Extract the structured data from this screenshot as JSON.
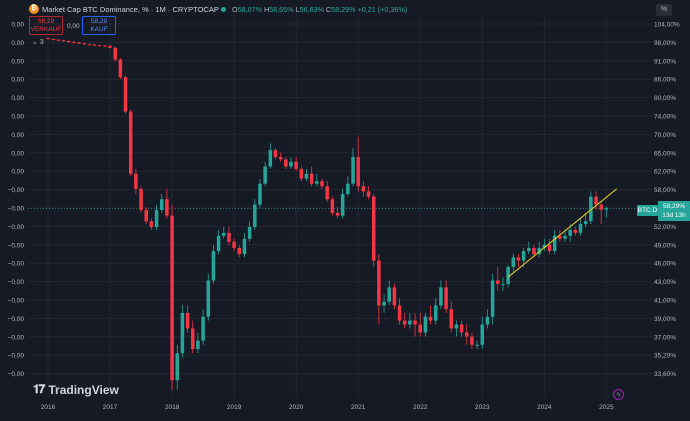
{
  "header": {
    "title": "Market Cap BTC Dominance, % · 1M · CRYPTOCAP",
    "symbol_icon": "bitcoin-icon",
    "ohlc": [
      {
        "key": "O",
        "value": "58,07%"
      },
      {
        "key": "H",
        "value": "58,65%"
      },
      {
        "key": "L",
        "value": "56,63%"
      },
      {
        "key": "C",
        "value": "58,29%"
      },
      {
        "key": "",
        "value": "+0,21 (+0,36%)"
      }
    ]
  },
  "trade": {
    "sell_price": "58,29",
    "sell_label": "VERKAUF",
    "spread": "0,00",
    "buy_price": "58,29",
    "buy_label": "KAUF",
    "collapse": "⌄ 3"
  },
  "scale_button": "%",
  "price_label": {
    "symbol": "BTC.D",
    "value": "58,29%",
    "countdown": "13d 13h"
  },
  "left_axis": [
    "0,00",
    "0,00",
    "0,00",
    "0,00",
    "0,00",
    "0,00",
    "0,00",
    "0,00",
    "0,00",
    "−0,00",
    "−0,00",
    "−0,00",
    "−0,00",
    "−0,00",
    "−0,00",
    "−0,00",
    "−0,00",
    "−0,00",
    "−0,00",
    "−0,00"
  ],
  "right_axis": [
    "104,00%",
    "98,00%",
    "91,00%",
    "86,00%",
    "80,00%",
    "74,00%",
    "70,00%",
    "65,00%",
    "62,00%",
    "58,00%",
    "55,00%",
    "52,00%",
    "49,00%",
    "46,00%",
    "43,00%",
    "41,00%",
    "39,00%",
    "37,00%",
    "35,20%",
    "33,60%"
  ],
  "x_axis": [
    "2016",
    "2017",
    "2018",
    "2019",
    "2020",
    "2021",
    "2022",
    "2023",
    "2024",
    "2025"
  ],
  "branding": {
    "logo_text": "TradingView"
  },
  "colors": {
    "up": "#26a69a",
    "down": "#f23645",
    "trendline": "#e4d41c",
    "bg": "#161a25",
    "grid": "#232733"
  },
  "chart_data": {
    "type": "candlestick",
    "title": "Market Cap BTC Dominance, % · 1M · CRYPTOCAP",
    "x": [
      "2016-01",
      "2016-02",
      "2016-03",
      "2016-04",
      "2016-05",
      "2016-06",
      "2016-07",
      "2016-08",
      "2016-09",
      "2016-10",
      "2016-11",
      "2016-12",
      "2017-01",
      "2017-02",
      "2017-03",
      "2017-04",
      "2017-05",
      "2017-06",
      "2017-07",
      "2017-08",
      "2017-09",
      "2017-10",
      "2017-11",
      "2017-12",
      "2018-01",
      "2018-02",
      "2018-03",
      "2018-04",
      "2018-05",
      "2018-06",
      "2018-07",
      "2018-08",
      "2018-09",
      "2018-10",
      "2018-11",
      "2018-12",
      "2019-01",
      "2019-02",
      "2019-03",
      "2019-04",
      "2019-05",
      "2019-06",
      "2019-07",
      "2019-08",
      "2019-09",
      "2019-10",
      "2019-11",
      "2019-12",
      "2020-01",
      "2020-02",
      "2020-03",
      "2020-04",
      "2020-05",
      "2020-06",
      "2020-07",
      "2020-08",
      "2020-09",
      "2020-10",
      "2020-11",
      "2020-12",
      "2021-01",
      "2021-02",
      "2021-03",
      "2021-04",
      "2021-05",
      "2021-06",
      "2021-07",
      "2021-08",
      "2021-09",
      "2021-10",
      "2021-11",
      "2021-12",
      "2022-01",
      "2022-02",
      "2022-03",
      "2022-04",
      "2022-05",
      "2022-06",
      "2022-07",
      "2022-08",
      "2022-09",
      "2022-10",
      "2022-11",
      "2022-12",
      "2023-01",
      "2023-02",
      "2023-03",
      "2023-04",
      "2023-05",
      "2023-06",
      "2023-07",
      "2023-08",
      "2023-09",
      "2023-10",
      "2023-11",
      "2023-12",
      "2024-01",
      "2024-02",
      "2024-03",
      "2024-04",
      "2024-05",
      "2024-06",
      "2024-07",
      "2024-08",
      "2024-09",
      "2024-10",
      "2024-11",
      "2024-12",
      "2025-01"
    ],
    "open": [
      99.5,
      99.2,
      99.0,
      98.8,
      98.6,
      98.3,
      98.1,
      97.9,
      97.6,
      97.5,
      97.3,
      97.2,
      97.1,
      96.5,
      93.0,
      88.0,
      79.0,
      65.0,
      62.0,
      58.0,
      56.0,
      55.0,
      58.0,
      60.0,
      57.0,
      34.0,
      37.0,
      42.0,
      40.0,
      37.5,
      38.5,
      41.5,
      46.5,
      51.0,
      53.5,
      54.0,
      52.5,
      51.5,
      50.5,
      53.0,
      55.0,
      59.0,
      63.0,
      66.5,
      70.0,
      68.5,
      68.0,
      66.5,
      67.5,
      66.0,
      64.0,
      65.0,
      63.0,
      63.5,
      62.5,
      60.0,
      57.5,
      57.0,
      61.0,
      63.0,
      68.5,
      62.5,
      61.5,
      60.5,
      49.5,
      43.0,
      43.5,
      45.5,
      43.0,
      41.0,
      40.5,
      41.0,
      40.5,
      39.5,
      41.5,
      41.0,
      43.0,
      45.5,
      42.5,
      40.0,
      40.5,
      39.5,
      39.0,
      38.0,
      38.0,
      40.5,
      41.5,
      46.5,
      46.0,
      46.0,
      48.5,
      50.0,
      49.5,
      51.0,
      51.5,
      50.5,
      51.5,
      52.0,
      51.0,
      53.5,
      53.0,
      53.5,
      54.5,
      54.0,
      55.5,
      56.0,
      60.5,
      59.0,
      58.07
    ],
    "close": [
      99.2,
      99.0,
      98.8,
      98.6,
      98.3,
      98.1,
      97.9,
      97.6,
      97.5,
      97.3,
      97.2,
      97.1,
      96.5,
      93.0,
      88.0,
      79.0,
      65.0,
      62.0,
      58.0,
      56.0,
      55.0,
      58.0,
      60.0,
      57.0,
      34.0,
      37.0,
      42.0,
      40.0,
      37.5,
      38.5,
      41.5,
      46.5,
      51.0,
      53.5,
      54.0,
      52.5,
      51.5,
      50.5,
      53.0,
      55.0,
      59.0,
      63.0,
      66.5,
      70.0,
      68.5,
      68.0,
      66.5,
      67.5,
      66.0,
      64.0,
      65.0,
      63.0,
      63.5,
      62.5,
      60.0,
      57.5,
      57.0,
      61.0,
      63.0,
      68.5,
      62.5,
      61.5,
      60.5,
      49.5,
      43.0,
      43.5,
      45.5,
      43.0,
      41.0,
      40.5,
      41.0,
      40.5,
      39.5,
      41.5,
      41.0,
      43.0,
      45.5,
      42.5,
      40.0,
      40.5,
      39.5,
      39.0,
      38.0,
      38.0,
      40.5,
      41.5,
      46.5,
      46.0,
      46.0,
      48.5,
      50.0,
      49.5,
      51.0,
      51.5,
      50.5,
      51.5,
      52.0,
      51.0,
      53.5,
      53.0,
      53.5,
      54.5,
      54.0,
      55.5,
      56.0,
      60.5,
      59.0,
      58.07,
      58.29
    ],
    "high": [
      99.7,
      99.4,
      99.2,
      99.0,
      98.8,
      98.5,
      98.3,
      98.1,
      97.8,
      97.7,
      97.5,
      97.4,
      97.3,
      96.9,
      93.5,
      88.5,
      79.5,
      66.0,
      62.5,
      58.5,
      56.5,
      59.0,
      61.0,
      62.0,
      59.0,
      38.0,
      43.0,
      43.0,
      41.0,
      39.5,
      42.5,
      47.5,
      52.0,
      54.5,
      55.0,
      55.0,
      53.0,
      52.0,
      54.0,
      56.0,
      60.0,
      64.0,
      67.5,
      71.5,
      70.5,
      69.5,
      68.5,
      68.5,
      68.5,
      66.5,
      66.0,
      66.5,
      65.0,
      64.0,
      63.5,
      60.5,
      58.5,
      62.0,
      64.5,
      70.5,
      73.0,
      63.5,
      62.5,
      61.0,
      50.5,
      44.5,
      46.5,
      46.0,
      44.0,
      42.0,
      42.0,
      42.0,
      42.0,
      42.0,
      43.0,
      44.0,
      46.5,
      46.5,
      43.5,
      41.0,
      41.0,
      40.5,
      39.5,
      38.5,
      41.5,
      42.5,
      47.5,
      48.5,
      47.0,
      48.8,
      50.6,
      50.5,
      51.5,
      52.5,
      52.0,
      52.5,
      53.0,
      53.0,
      54.5,
      54.5,
      54.5,
      55.5,
      55.0,
      56.5,
      57.5,
      61.5,
      61.5,
      59.5,
      58.65
    ],
    "low": [
      99.0,
      98.8,
      98.6,
      98.4,
      98.1,
      97.9,
      97.7,
      97.4,
      97.3,
      97.1,
      97.0,
      96.9,
      96.3,
      92.5,
      87.5,
      78.5,
      64.5,
      61.0,
      57.5,
      55.5,
      54.5,
      54.5,
      57.5,
      56.5,
      33.0,
      33.0,
      36.5,
      39.5,
      37.0,
      37.0,
      38.0,
      41.0,
      46.0,
      50.5,
      53.0,
      52.0,
      51.0,
      50.0,
      50.0,
      52.5,
      54.5,
      58.5,
      62.5,
      66.0,
      68.0,
      67.5,
      66.0,
      66.0,
      65.5,
      63.5,
      63.5,
      62.5,
      62.5,
      62.0,
      59.5,
      57.0,
      56.5,
      56.5,
      60.5,
      62.5,
      61.5,
      60.5,
      60.0,
      48.5,
      40.5,
      42.0,
      43.0,
      42.5,
      40.5,
      40.0,
      40.0,
      39.0,
      39.0,
      39.0,
      40.5,
      40.5,
      42.5,
      42.0,
      39.5,
      39.0,
      39.0,
      38.0,
      37.5,
      37.5,
      37.5,
      40.0,
      40.5,
      45.0,
      45.0,
      45.5,
      47.5,
      48.5,
      48.5,
      50.5,
      50.0,
      50.0,
      51.0,
      50.5,
      50.5,
      52.5,
      52.5,
      52.5,
      53.5,
      53.5,
      55.0,
      55.5,
      58.0,
      55.5,
      56.63
    ],
    "trendline": {
      "from": {
        "x": "2023-06",
        "y": 47.0
      },
      "to": {
        "x": "2025-03",
        "y": 62.0
      }
    },
    "ylim": [
      33.6,
      104.0
    ],
    "yscale": "log",
    "grid": true,
    "last_value": 58.29
  }
}
